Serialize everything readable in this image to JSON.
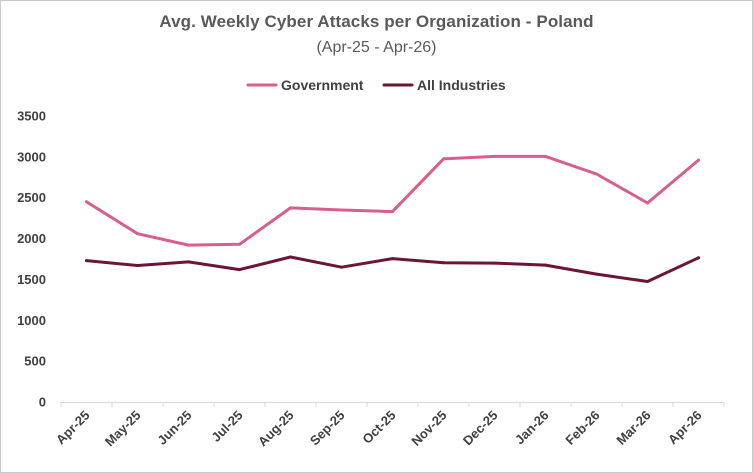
{
  "chart_data": {
    "type": "line",
    "title": "Avg. Weekly Cyber Attacks per Organization - Poland",
    "subtitle": "(Apr-25 - Apr-26)",
    "categories": [
      "Apr-25",
      "May-25",
      "Jun-25",
      "Jul-25",
      "Aug-25",
      "Sep-25",
      "Oct-25",
      "Nov-25",
      "Dec-25",
      "Jan-26",
      "Feb-26",
      "Mar-26",
      "Apr-26"
    ],
    "series": [
      {
        "name": "Government",
        "color": "#d65f8f",
        "values": [
          2450,
          2060,
          1920,
          1930,
          2375,
          2350,
          2330,
          2975,
          3005,
          3005,
          2790,
          2435,
          2960
        ]
      },
      {
        "name": "All Industries",
        "color": "#6b1538",
        "values": [
          1730,
          1670,
          1715,
          1620,
          1775,
          1650,
          1755,
          1705,
          1700,
          1675,
          1565,
          1475,
          1765
        ]
      }
    ],
    "ylim": [
      0,
      3500
    ],
    "yticks": [
      0,
      500,
      1000,
      1500,
      2000,
      2500,
      3000,
      3500
    ],
    "grid": false,
    "legend_position": "top"
  }
}
